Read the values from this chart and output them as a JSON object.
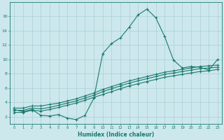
{
  "xlabel": "Humidex (Indice chaleur)",
  "bg_color": "#cce8ec",
  "line_color": "#1a7a6e",
  "grid_color": "#aacfd4",
  "xlim": [
    -0.5,
    23.5
  ],
  "ylim": [
    1.0,
    18.0
  ],
  "yticks": [
    2,
    4,
    6,
    8,
    10,
    12,
    14,
    16
  ],
  "xticks": [
    0,
    1,
    2,
    3,
    4,
    5,
    6,
    7,
    8,
    9,
    10,
    11,
    12,
    13,
    14,
    15,
    16,
    17,
    18,
    19,
    20,
    21,
    22,
    23
  ],
  "line1_x": [
    0,
    1,
    2,
    3,
    4,
    5,
    6,
    7,
    8,
    9,
    10,
    11,
    12,
    13,
    14,
    15,
    16,
    17,
    18,
    19,
    20,
    21,
    22,
    23
  ],
  "line1_y": [
    3.0,
    2.7,
    3.0,
    2.2,
    2.1,
    2.3,
    1.8,
    1.6,
    2.2,
    4.6,
    10.8,
    12.2,
    13.0,
    14.5,
    16.2,
    17.0,
    15.8,
    13.2,
    9.9,
    8.8,
    9.0,
    8.9,
    8.5,
    10.0
  ],
  "line2_x": [
    0,
    1,
    2,
    3,
    4,
    5,
    6,
    7,
    8,
    9,
    10,
    11,
    12,
    13,
    14,
    15,
    16,
    17,
    18,
    19,
    20,
    21,
    22,
    23
  ],
  "line2_y": [
    3.2,
    3.2,
    3.5,
    3.5,
    3.7,
    3.9,
    4.2,
    4.5,
    4.9,
    5.3,
    5.8,
    6.2,
    6.6,
    7.0,
    7.3,
    7.6,
    7.9,
    8.2,
    8.4,
    8.6,
    8.8,
    9.0,
    9.1,
    9.2
  ],
  "line3_x": [
    0,
    1,
    2,
    3,
    4,
    5,
    6,
    7,
    8,
    9,
    10,
    11,
    12,
    13,
    14,
    15,
    16,
    17,
    18,
    19,
    20,
    21,
    22,
    23
  ],
  "line3_y": [
    2.9,
    2.9,
    3.2,
    3.1,
    3.3,
    3.6,
    3.9,
    4.2,
    4.6,
    5.0,
    5.5,
    5.9,
    6.3,
    6.7,
    7.0,
    7.3,
    7.6,
    7.9,
    8.1,
    8.3,
    8.5,
    8.7,
    8.8,
    8.9
  ],
  "line4_x": [
    0,
    1,
    2,
    3,
    4,
    5,
    6,
    7,
    8,
    9,
    10,
    11,
    12,
    13,
    14,
    15,
    16,
    17,
    18,
    19,
    20,
    21,
    22,
    23
  ],
  "line4_y": [
    2.6,
    2.6,
    2.9,
    2.8,
    3.0,
    3.3,
    3.6,
    3.9,
    4.3,
    4.7,
    5.1,
    5.5,
    5.9,
    6.3,
    6.6,
    6.9,
    7.2,
    7.5,
    7.7,
    7.9,
    8.1,
    8.3,
    8.4,
    8.6
  ]
}
